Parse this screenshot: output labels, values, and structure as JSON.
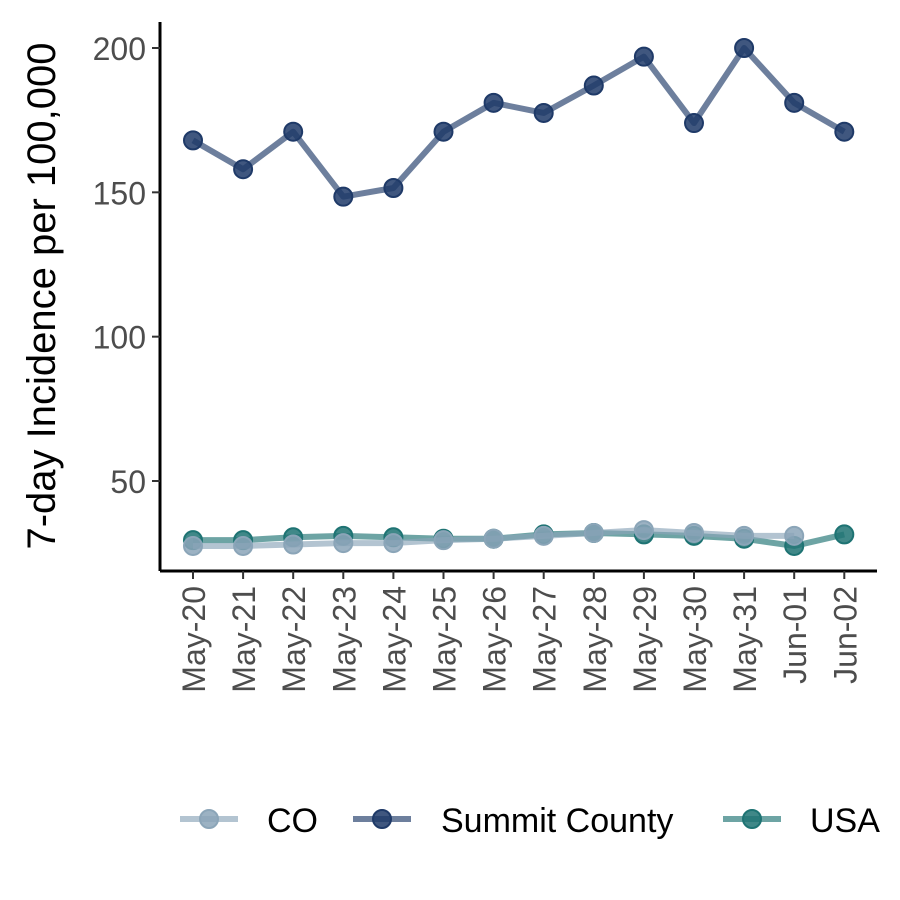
{
  "chart_data": {
    "type": "line",
    "title": "",
    "xlabel": "",
    "ylabel": "7-day Incidence per 100,000",
    "categories": [
      "May-20",
      "May-21",
      "May-22",
      "May-23",
      "May-24",
      "May-25",
      "May-26",
      "May-27",
      "May-28",
      "May-29",
      "May-30",
      "May-31",
      "Jun-01",
      "Jun-02"
    ],
    "yticks": [
      50,
      100,
      150,
      200
    ],
    "ylim": [
      20,
      208
    ],
    "grid": false,
    "legend_position": "bottom",
    "series": [
      {
        "name": "CO",
        "color": "#8BA5B8",
        "values": [
          27.5,
          27.5,
          28,
          28.5,
          28.5,
          29.5,
          30,
          31,
          32,
          33,
          32,
          31,
          31,
          null
        ]
      },
      {
        "name": "Summit County",
        "color": "#1F3A68",
        "values": [
          168,
          158,
          171,
          148.5,
          151.5,
          171,
          181,
          177.5,
          187,
          197,
          174,
          200,
          181,
          171
        ]
      },
      {
        "name": "USA",
        "color": "#1E7373",
        "values": [
          29.5,
          29.5,
          30.5,
          31,
          30.5,
          30,
          30,
          31.5,
          32,
          31.5,
          31,
          30,
          27.5,
          31.5
        ]
      }
    ]
  }
}
